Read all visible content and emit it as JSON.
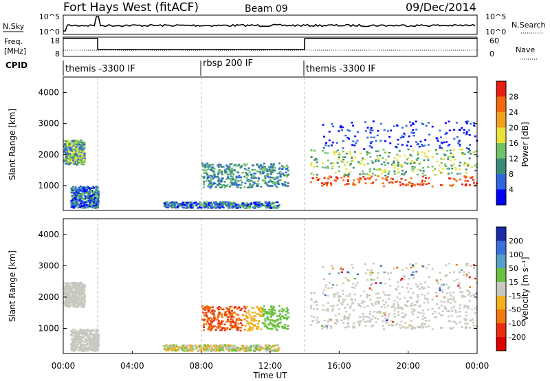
{
  "header": {
    "title": "Fort Hays West (fitACF)",
    "beam": "Beam 09",
    "date": "09/Dec/2014"
  },
  "noise_panel": {
    "left_label": "N.Sky",
    "left_ticks": [
      "10^5",
      "10^0"
    ],
    "right_label": "N.Search",
    "right_ticks": [
      "10^5",
      "10^0"
    ]
  },
  "freq_panel": {
    "left_label_1": "Freq.",
    "left_label_2": "[MHz]",
    "left_ticks": [
      "18",
      "8"
    ],
    "right_label": "Nave",
    "right_ticks": [
      "60",
      "0"
    ]
  },
  "cpid": {
    "label": "CPID",
    "segments": [
      {
        "start_h": 0,
        "text": "themis -3300 IF"
      },
      {
        "start_h": 8,
        "text": "rbsp 200 IF"
      },
      {
        "start_h": 14,
        "text": "themis -3300 IF"
      }
    ]
  },
  "chart_data": [
    {
      "type": "heatmap",
      "name_param": "Power",
      "xlabel": "",
      "ylabel": "Slant Range [km]",
      "xlim": [
        0,
        24
      ],
      "ylim": [
        200,
        4500
      ],
      "y_ticks": [
        "1000",
        "2000",
        "3000",
        "4000"
      ],
      "colorbar": {
        "label": "Power [dB]",
        "ticks": [
          "4",
          "8",
          "12",
          "16",
          "20",
          "24",
          "28"
        ],
        "colors": [
          "#0000ff",
          "#2f66e0",
          "#3a8a7a",
          "#6fc26a",
          "#e8e23a",
          "#f0a020",
          "#f06a10",
          "#e62010"
        ]
      }
    },
    {
      "type": "heatmap",
      "name_param": "Velocity",
      "xlabel": "Time UT",
      "ylabel": "Slant Range [km]",
      "xlim": [
        0,
        24
      ],
      "ylim": [
        200,
        4500
      ],
      "y_ticks": [
        "1000",
        "2000",
        "3000",
        "4000"
      ],
      "x_ticks": [
        "00:00",
        "04:00",
        "08:00",
        "12:00",
        "16:00",
        "20:00",
        "00:00"
      ],
      "colorbar": {
        "label": "Velocity [m s⁻¹]",
        "ticks": [
          "200",
          "100",
          "50",
          "15",
          "-15",
          "-50",
          "-100",
          "-200"
        ],
        "colors": [
          "#1a2aa8",
          "#3a70d8",
          "#56a0c8",
          "#6ac040",
          "#c8c8c0",
          "#f0b020",
          "#f07a10",
          "#e83010",
          "#e00000"
        ]
      }
    }
  ]
}
